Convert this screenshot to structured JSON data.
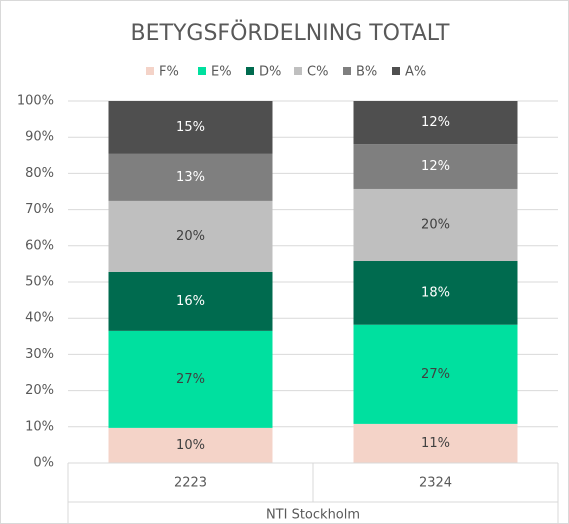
{
  "chart_data": {
    "type": "stacked_bar_100",
    "title": "BETYGSFÖRDELNING TOTALT",
    "categories": [
      "2223",
      "2324"
    ],
    "group_label": "NTI Stockholm",
    "series": [
      {
        "name": "F%",
        "color": "#f4d3c8",
        "values": [
          9.7,
          10.8
        ],
        "value_labels": [
          "10%",
          "11%"
        ]
      },
      {
        "name": "E%",
        "color": "#00e09f",
        "values": [
          26.8,
          27.4
        ],
        "value_labels": [
          "27%",
          "27%"
        ]
      },
      {
        "name": "D%",
        "color": "#006b4f",
        "values": [
          16.3,
          17.6
        ],
        "value_labels": [
          "16%",
          "18%"
        ]
      },
      {
        "name": "C%",
        "color": "#bfbfbf",
        "values": [
          19.6,
          19.9
        ],
        "value_labels": [
          "20%",
          "20%"
        ]
      },
      {
        "name": "B%",
        "color": "#7f7f7f",
        "values": [
          13.0,
          12.4
        ],
        "value_labels": [
          "13%",
          "12%"
        ]
      },
      {
        "name": "A%",
        "color": "#4f4f4f",
        "values": [
          14.6,
          11.9
        ],
        "value_labels": [
          "15%",
          "12%"
        ]
      }
    ],
    "ylim": [
      0,
      100
    ],
    "yticks": [
      {
        "value": 0,
        "label": "0%"
      },
      {
        "value": 10,
        "label": "10%"
      },
      {
        "value": 20,
        "label": "20%"
      },
      {
        "value": 30,
        "label": "30%"
      },
      {
        "value": 40,
        "label": "40%"
      },
      {
        "value": 50,
        "label": "50%"
      },
      {
        "value": 60,
        "label": "60%"
      },
      {
        "value": 70,
        "label": "70%"
      },
      {
        "value": 80,
        "label": "80%"
      },
      {
        "value": 90,
        "label": "90%"
      },
      {
        "value": 100,
        "label": "100%"
      }
    ],
    "grid": true,
    "legend": "top"
  }
}
